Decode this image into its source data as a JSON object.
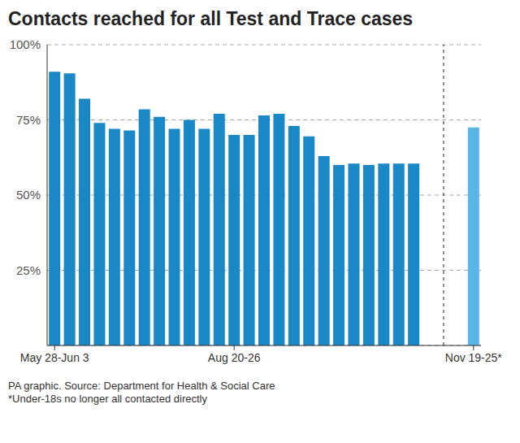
{
  "chart_data": {
    "type": "bar",
    "title": "Contacts reached for all Test and Trace cases",
    "categories": [
      "May 28-Jun 3",
      null,
      null,
      null,
      null,
      null,
      null,
      null,
      null,
      null,
      null,
      null,
      "Aug 20-26",
      null,
      null,
      null,
      null,
      null,
      null,
      null,
      null,
      null,
      null,
      null,
      null,
      null,
      null,
      null,
      "Nov 19-25*"
    ],
    "values": [
      91,
      90.5,
      82,
      74,
      72,
      71.5,
      78.5,
      76,
      72,
      75,
      72,
      77,
      70,
      70,
      76.5,
      77,
      73,
      69.5,
      63,
      60,
      60.5,
      60,
      60.5,
      60.5,
      60.5,
      null,
      null,
      null,
      72.5
    ],
    "colors": [
      "#1a87c7",
      "#1a87c7",
      "#1a87c7",
      "#1a87c7",
      "#1a87c7",
      "#1a87c7",
      "#1a87c7",
      "#1a87c7",
      "#1a87c7",
      "#1a87c7",
      "#1a87c7",
      "#1a87c7",
      "#1a87c7",
      "#1a87c7",
      "#1a87c7",
      "#1a87c7",
      "#1a87c7",
      "#1a87c7",
      "#1a87c7",
      "#1a87c7",
      "#1a87c7",
      "#1a87c7",
      "#1a87c7",
      "#1a87c7",
      "#1a87c7",
      null,
      null,
      null,
      "#5ab4e5"
    ],
    "ylim": [
      0,
      100
    ],
    "yticks": [
      {
        "value": 25,
        "label": "25%"
      },
      {
        "value": 50,
        "label": "50%"
      },
      {
        "value": 75,
        "label": "75%"
      },
      {
        "value": 100,
        "label": "100%"
      }
    ],
    "grid": true,
    "notes": [
      "PA graphic. Source: Department for Health & Social Care",
      "*Under-18s no longer all contacted directly"
    ]
  }
}
